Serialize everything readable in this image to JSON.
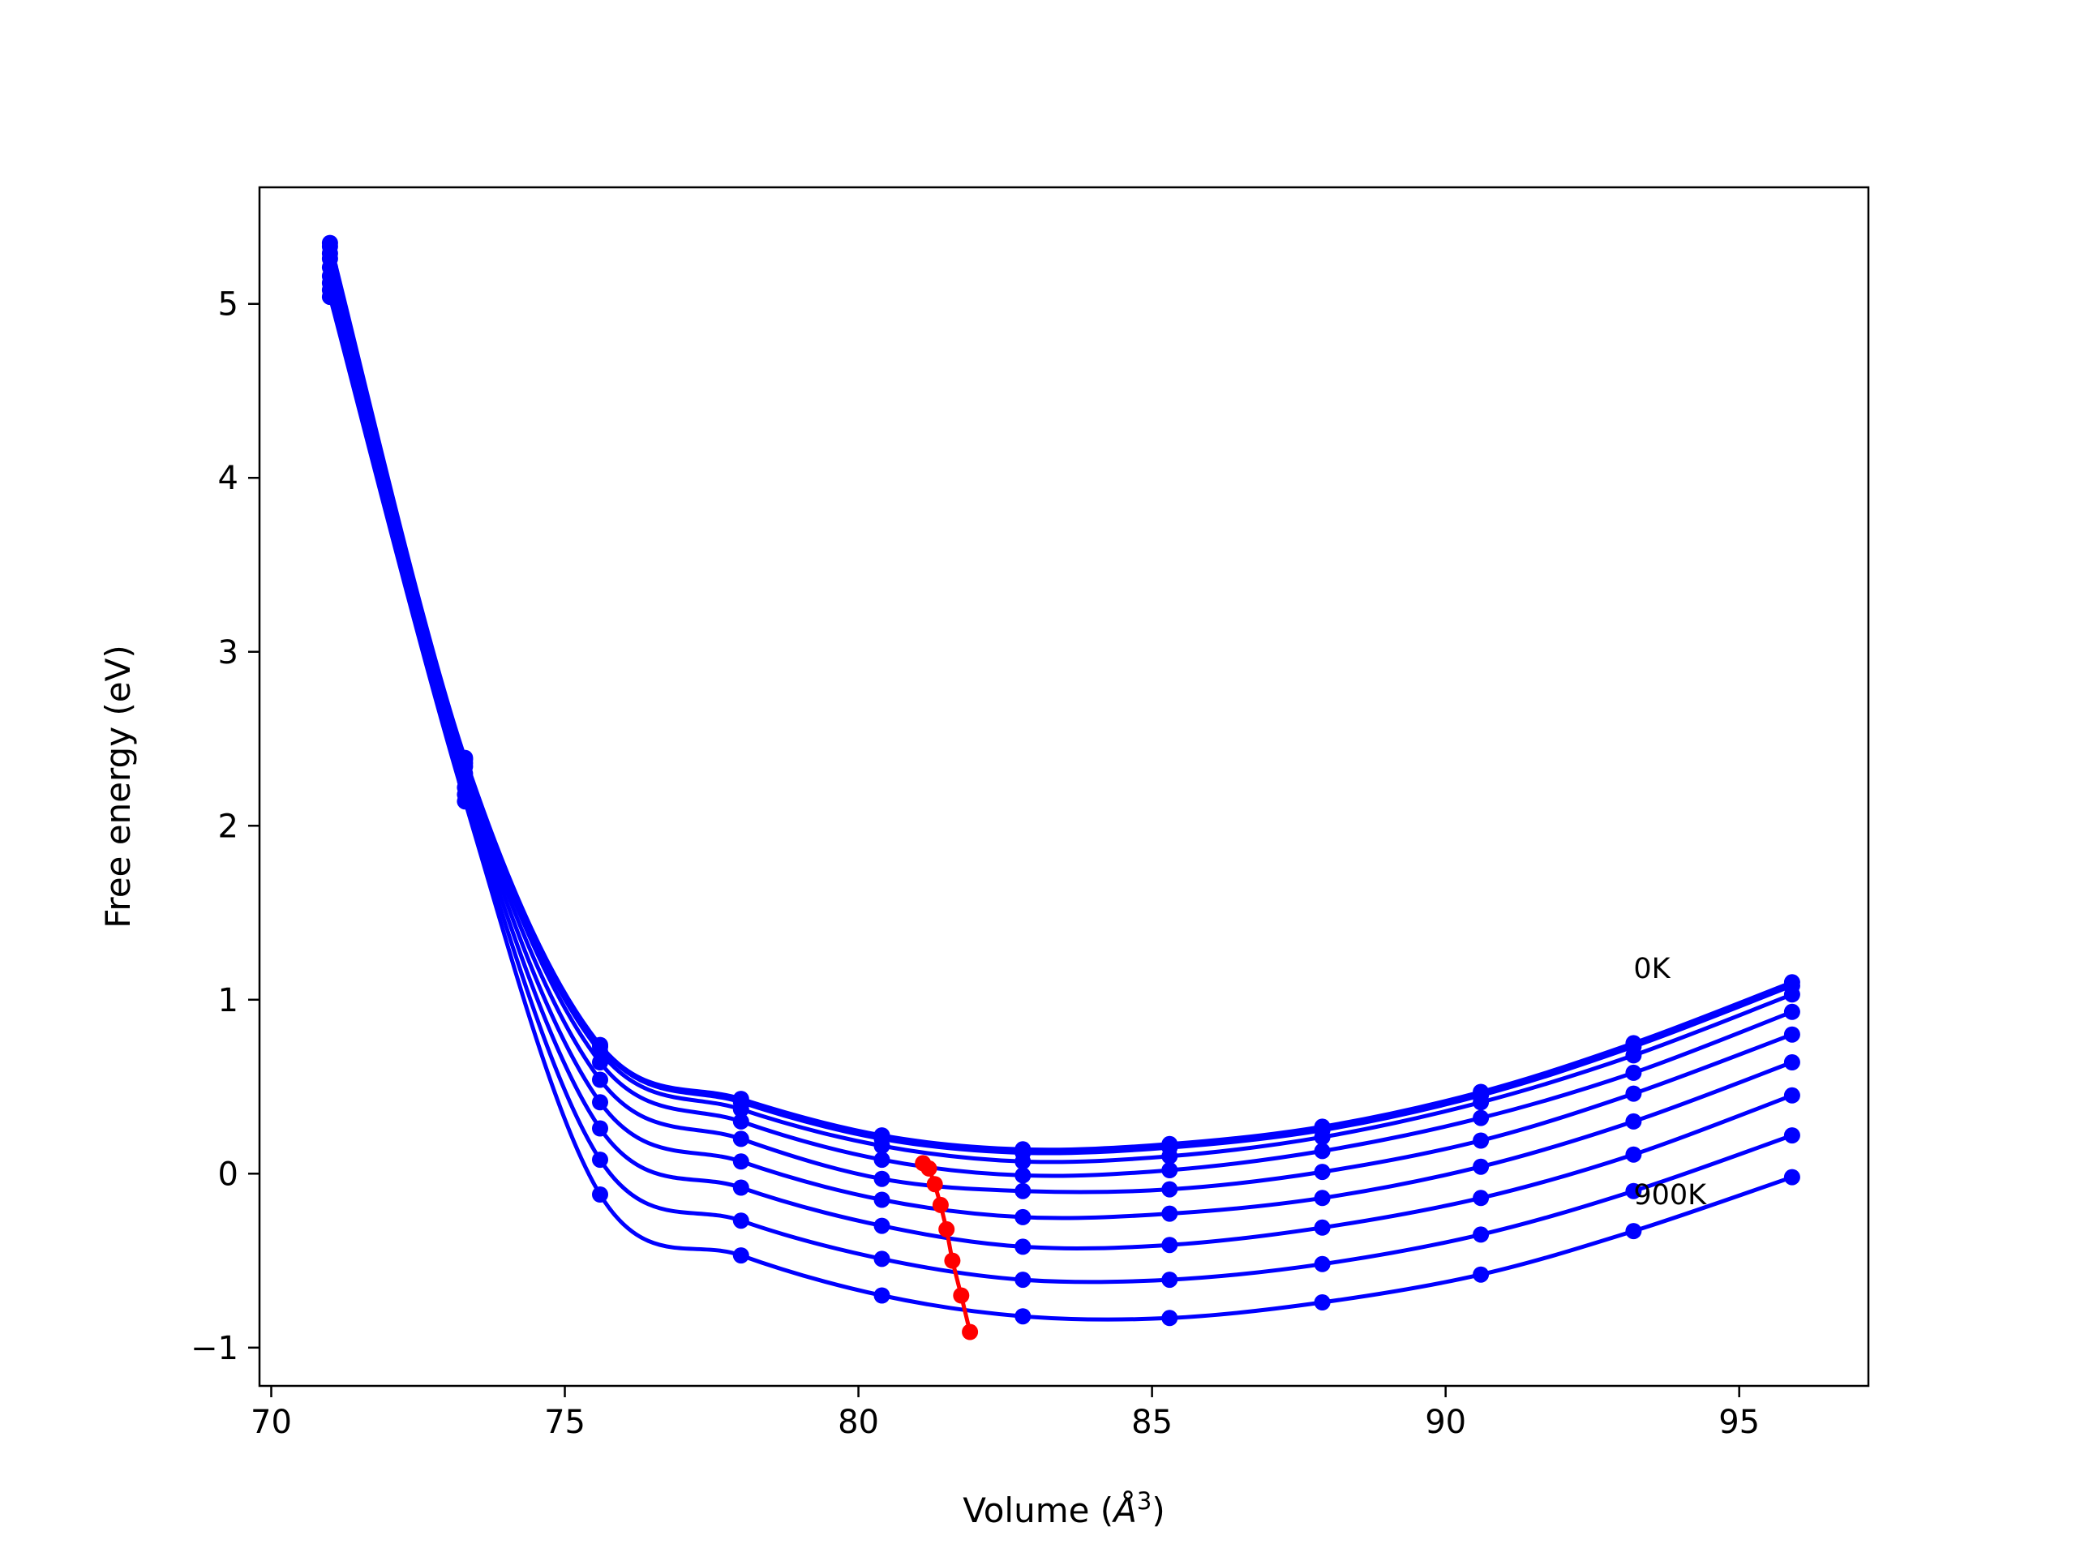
{
  "chart_data": {
    "type": "line",
    "title": "",
    "xlabel_text": "Volume (",
    "xlabel_unit": "Å",
    "xlabel_exp": "3",
    "xlabel_close": ")",
    "ylabel": "Free energy (eV)",
    "xlim": [
      69.8,
      97.2
    ],
    "ylim": [
      -1.22,
      5.67
    ],
    "xticks": [
      70,
      75,
      80,
      85,
      90,
      95
    ],
    "yticks": [
      -1,
      0,
      1,
      2,
      3,
      4,
      5
    ],
    "ytick_labels": [
      "−1",
      "0",
      "1",
      "2",
      "3",
      "4",
      "5"
    ],
    "grid": false,
    "curve_labels": [
      {
        "text": "0K",
        "x": 93.2,
        "y": 1.18
      },
      {
        "text": "900K",
        "x": 93.2,
        "y": -0.12
      }
    ],
    "temperature_curves": {
      "color": "#0000ff",
      "volumes": [
        71.0,
        73.3,
        75.6,
        78.0,
        80.4,
        82.8,
        85.3,
        87.9,
        90.6,
        93.2,
        95.9
      ],
      "series": [
        {
          "values": [
            5.35,
            2.39,
            0.74,
            0.43,
            0.22,
            0.14,
            0.17,
            0.27,
            0.47,
            0.75,
            1.1
          ]
        },
        {
          "values": [
            5.33,
            2.38,
            0.73,
            0.41,
            0.2,
            0.12,
            0.15,
            0.25,
            0.45,
            0.73,
            1.08
          ]
        },
        {
          "values": [
            5.29,
            2.36,
            0.7,
            0.37,
            0.16,
            0.07,
            0.1,
            0.21,
            0.41,
            0.68,
            1.03
          ]
        },
        {
          "values": [
            5.26,
            2.34,
            0.64,
            0.3,
            0.08,
            -0.01,
            0.02,
            0.13,
            0.32,
            0.58,
            0.93
          ]
        },
        {
          "values": [
            5.21,
            2.3,
            0.54,
            0.2,
            -0.03,
            -0.1,
            -0.09,
            0.01,
            0.19,
            0.46,
            0.8
          ]
        },
        {
          "values": [
            5.16,
            2.26,
            0.41,
            0.07,
            -0.15,
            -0.25,
            -0.23,
            -0.14,
            0.04,
            0.3,
            0.64
          ]
        },
        {
          "values": [
            5.12,
            2.22,
            0.26,
            -0.08,
            -0.3,
            -0.42,
            -0.41,
            -0.31,
            -0.14,
            0.11,
            0.45
          ]
        },
        {
          "values": [
            5.08,
            2.18,
            0.08,
            -0.27,
            -0.49,
            -0.61,
            -0.61,
            -0.52,
            -0.35,
            -0.1,
            0.22
          ]
        },
        {
          "values": [
            5.04,
            2.14,
            -0.12,
            -0.47,
            -0.7,
            -0.82,
            -0.83,
            -0.74,
            -0.58,
            -0.33,
            -0.02
          ]
        }
      ]
    },
    "minimum_path": {
      "color": "#ff0000",
      "x": [
        81.1,
        81.2,
        81.3,
        81.4,
        81.5,
        81.6,
        81.75,
        81.9
      ],
      "y": [
        0.06,
        0.03,
        -0.06,
        -0.18,
        -0.32,
        -0.5,
        -0.7,
        -0.91
      ]
    }
  }
}
